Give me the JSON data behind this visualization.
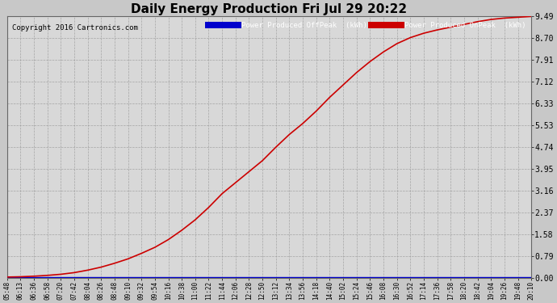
{
  "title": "Daily Energy Production Fri Jul 29 20:22",
  "copyright": "Copyright 2016 Cartronics.com",
  "legend_offpeak_label": "Power Produced OffPeak  (kWh)",
  "legend_onpeak_label": "Power Produced OnPeak  (kWh)",
  "legend_offpeak_bg": "#0000cc",
  "legend_onpeak_bg": "#cc0000",
  "background_color": "#c8c8c8",
  "plot_bg_color": "#d8d8d8",
  "grid_color": "#aaaaaa",
  "title_color": "#000000",
  "ytick_labels": [
    "0.00",
    "0.79",
    "1.58",
    "2.37",
    "3.16",
    "3.95",
    "4.74",
    "5.53",
    "6.33",
    "7.12",
    "7.91",
    "8.70",
    "9.49"
  ],
  "ytick_values": [
    0.0,
    0.79,
    1.58,
    2.37,
    3.16,
    3.95,
    4.74,
    5.53,
    6.33,
    7.12,
    7.91,
    8.7,
    9.49
  ],
  "ymax": 9.49,
  "ymin": 0.0,
  "x_labels": [
    "05:48",
    "06:13",
    "06:36",
    "06:58",
    "07:20",
    "07:42",
    "08:04",
    "08:26",
    "08:48",
    "09:10",
    "09:32",
    "09:54",
    "10:16",
    "10:38",
    "11:00",
    "11:22",
    "11:44",
    "12:06",
    "12:28",
    "12:50",
    "13:12",
    "13:34",
    "13:56",
    "14:18",
    "14:40",
    "15:02",
    "15:24",
    "15:46",
    "16:08",
    "16:30",
    "16:52",
    "17:14",
    "17:36",
    "17:58",
    "18:20",
    "18:42",
    "19:04",
    "19:26",
    "19:48",
    "20:10"
  ],
  "onpeak_line_color": "#cc0000",
  "offpeak_line_color": "#0000cc",
  "y_data": [
    0.02,
    0.03,
    0.05,
    0.08,
    0.12,
    0.18,
    0.27,
    0.38,
    0.52,
    0.68,
    0.88,
    1.1,
    1.38,
    1.72,
    2.1,
    2.55,
    3.05,
    3.45,
    3.85,
    4.25,
    4.74,
    5.2,
    5.6,
    6.05,
    6.55,
    7.0,
    7.45,
    7.85,
    8.2,
    8.5,
    8.72,
    8.88,
    9.0,
    9.1,
    9.2,
    9.3,
    9.38,
    9.43,
    9.46,
    9.49
  ],
  "y_offpeak": [
    0.03,
    0.03,
    0.03,
    0.03,
    0.03,
    0.03,
    0.03,
    0.03,
    0.03,
    0.03,
    0.03,
    0.03,
    0.03,
    0.03,
    0.03,
    0.03,
    0.03,
    0.03,
    0.03,
    0.03,
    0.03,
    0.03,
    0.03,
    0.03,
    0.03,
    0.03,
    0.03,
    0.03,
    0.03,
    0.03,
    0.03,
    0.03,
    0.03,
    0.03,
    0.03,
    0.03,
    0.03,
    0.03,
    0.03,
    0.03
  ]
}
